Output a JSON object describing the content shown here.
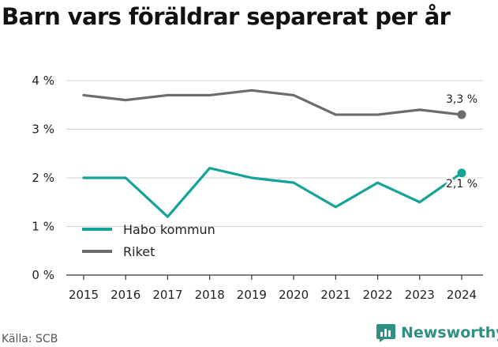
{
  "title": "Barn vars föräldrar separerat per år",
  "source": "Källa: SCB",
  "brand": {
    "name": "Newsworthy",
    "icon": "bar-chart-speech-icon"
  },
  "colors": {
    "habo": "#14a396",
    "riket": "#6b6b70",
    "grid": "#d2d2d2",
    "axis": "#333333",
    "brand": "#2f8f83"
  },
  "chart_data": {
    "type": "line",
    "categories": [
      "2015",
      "2016",
      "2017",
      "2018",
      "2019",
      "2020",
      "2021",
      "2022",
      "2023",
      "2024"
    ],
    "yticks": [
      "0 %",
      "1 %",
      "2 %",
      "3 %",
      "4 %"
    ],
    "ylim": [
      0,
      4
    ],
    "grid": true,
    "legend_position": "bottom-left",
    "series": [
      {
        "key": "habo",
        "name": "Habo kommun",
        "values": [
          2.0,
          2.0,
          1.2,
          2.2,
          2.0,
          1.9,
          1.4,
          1.9,
          1.5,
          2.1
        ],
        "end_label": "2,1 %"
      },
      {
        "key": "riket",
        "name": "Riket",
        "values": [
          3.7,
          3.6,
          3.7,
          3.7,
          3.8,
          3.7,
          3.3,
          3.3,
          3.4,
          3.3
        ],
        "end_label": "3,3 %"
      }
    ]
  }
}
